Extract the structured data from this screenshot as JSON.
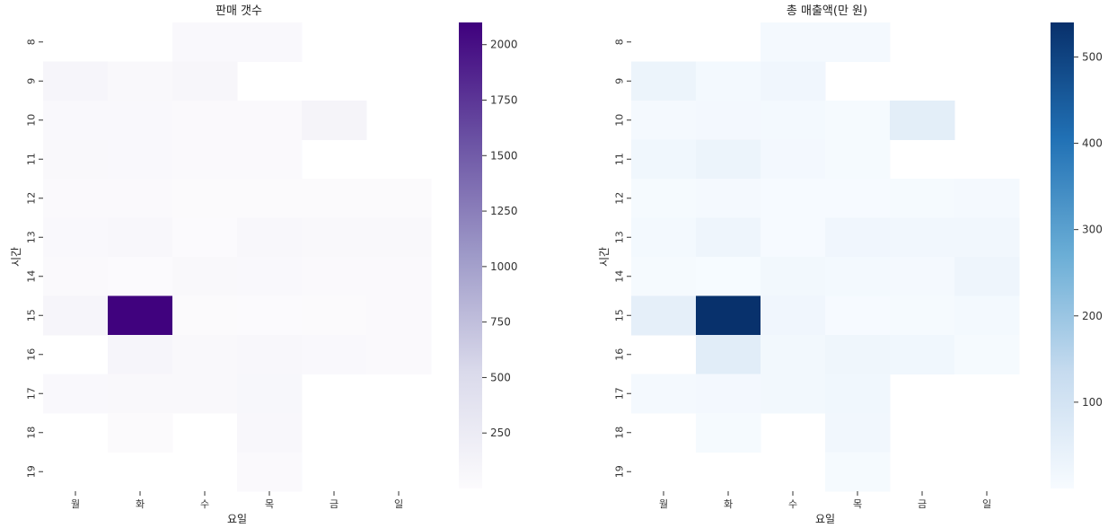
{
  "chart_data": [
    {
      "type": "heatmap",
      "title": "판매 갯수",
      "xlabel": "요일",
      "ylabel": "시간",
      "x_categories": [
        "월",
        "화",
        "수",
        "목",
        "금",
        "일"
      ],
      "y_categories": [
        "8",
        "9",
        "10",
        "11",
        "12",
        "13",
        "14",
        "15",
        "16",
        "17",
        "18",
        "19"
      ],
      "values": [
        [
          null,
          null,
          40,
          40,
          null,
          null
        ],
        [
          90,
          50,
          80,
          null,
          null,
          null
        ],
        [
          40,
          40,
          30,
          30,
          110,
          null
        ],
        [
          50,
          40,
          30,
          30,
          null,
          null
        ],
        [
          30,
          30,
          20,
          20,
          20,
          20
        ],
        [
          40,
          60,
          10,
          60,
          50,
          50
        ],
        [
          30,
          10,
          50,
          40,
          30,
          30
        ],
        [
          100,
          2090,
          20,
          10,
          20,
          30
        ],
        [
          null,
          90,
          50,
          60,
          40,
          30
        ],
        [
          40,
          50,
          50,
          70,
          null,
          null
        ],
        [
          null,
          20,
          null,
          60,
          null,
          null
        ],
        [
          null,
          null,
          null,
          30,
          null,
          null
        ]
      ],
      "colorbar": {
        "min": 0,
        "max": 2100,
        "ticks": [
          250,
          500,
          750,
          1000,
          1250,
          1500,
          1750,
          2000
        ]
      },
      "colormap": [
        "#fcfbfd",
        "#dadaeb",
        "#9e9ac8",
        "#6a51a3",
        "#3f007d"
      ]
    },
    {
      "type": "heatmap",
      "title": "총 매출액(만 원)",
      "xlabel": "요일",
      "ylabel": "시간",
      "x_categories": [
        "월",
        "화",
        "수",
        "목",
        "금",
        "일"
      ],
      "y_categories": [
        "8",
        "9",
        "10",
        "11",
        "12",
        "13",
        "14",
        "15",
        "16",
        "17",
        "18",
        "19"
      ],
      "values": [
        [
          null,
          null,
          8,
          8,
          null,
          null
        ],
        [
          30,
          10,
          20,
          null,
          null,
          null
        ],
        [
          8,
          12,
          10,
          6,
          55,
          null
        ],
        [
          18,
          30,
          12,
          6,
          null,
          null
        ],
        [
          6,
          8,
          4,
          4,
          6,
          8
        ],
        [
          10,
          24,
          4,
          20,
          16,
          16
        ],
        [
          6,
          2,
          14,
          10,
          8,
          26
        ],
        [
          50,
          538,
          20,
          4,
          6,
          10
        ],
        [
          null,
          60,
          14,
          22,
          18,
          6
        ],
        [
          8,
          12,
          14,
          18,
          null,
          null
        ],
        [
          null,
          6,
          null,
          16,
          null,
          null
        ],
        [
          null,
          null,
          null,
          6,
          null,
          null
        ]
      ],
      "colorbar": {
        "min": 0,
        "max": 540,
        "ticks": [
          100,
          200,
          300,
          400,
          500
        ]
      },
      "colormap": [
        "#f7fbff",
        "#c6dbef",
        "#6baed6",
        "#2171b5",
        "#08306b"
      ]
    }
  ]
}
